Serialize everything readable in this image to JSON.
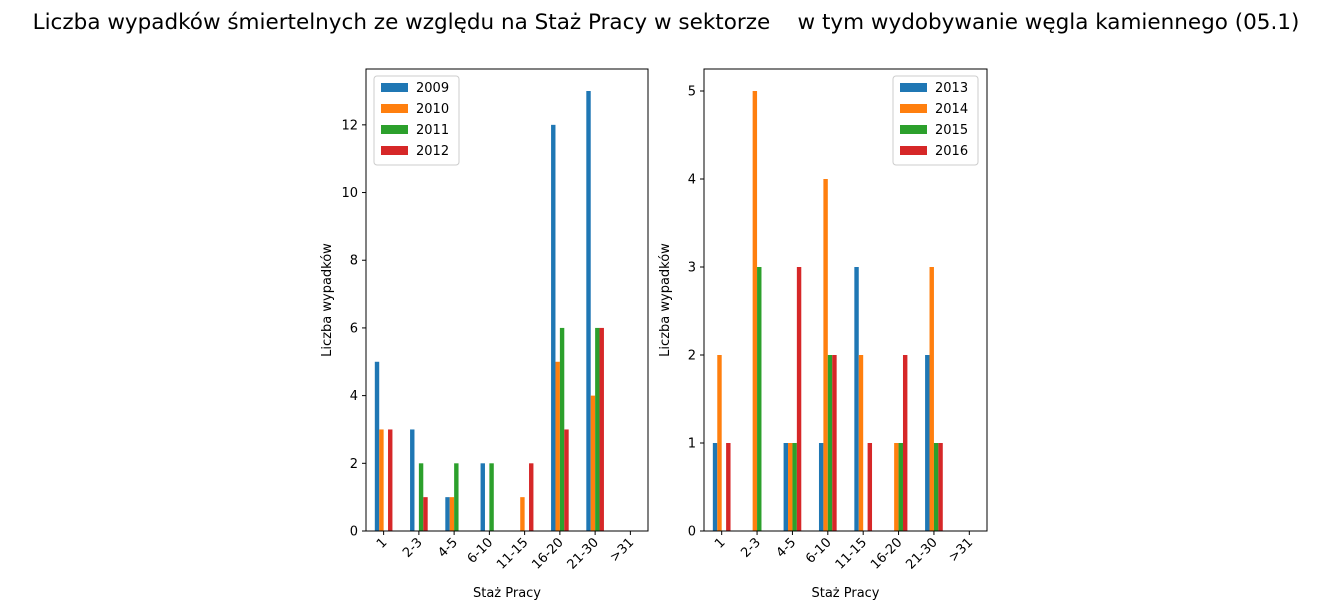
{
  "title": "Liczba wypadków śmiertelnych ze względu na Staż Pracy w sektorze    w tym wydobywanie węgla kamiennego (05.1)",
  "colors": [
    "#1f77b4",
    "#ff7f0e",
    "#2ca02c",
    "#d62728"
  ],
  "chart_data": [
    {
      "type": "bar",
      "categories": [
        "1",
        "2-3",
        "4-5",
        "6-10",
        "11-15",
        "16-20",
        "21-30",
        ">31"
      ],
      "xlabel": "Staż Pracy",
      "ylabel": "Liczba wypadków",
      "ylim": [
        0,
        13.65
      ],
      "yticks": [
        "0",
        "2",
        "4",
        "6",
        "8",
        "10",
        "12"
      ],
      "legend_position": "top-left",
      "series": [
        {
          "name": "2009",
          "values": [
            5,
            3,
            1,
            2,
            0,
            12,
            13,
            0
          ]
        },
        {
          "name": "2010",
          "values": [
            3,
            0,
            1,
            0,
            1,
            5,
            4,
            0
          ]
        },
        {
          "name": "2011",
          "values": [
            0,
            2,
            2,
            2,
            0,
            6,
            6,
            0
          ]
        },
        {
          "name": "2012",
          "values": [
            3,
            1,
            0,
            0,
            2,
            3,
            6,
            0
          ]
        }
      ]
    },
    {
      "type": "bar",
      "categories": [
        "1",
        "2-3",
        "4-5",
        "6-10",
        "11-15",
        "16-20",
        "21-30",
        ">31"
      ],
      "xlabel": "Staż Pracy",
      "ylabel": "Liczba wypadków",
      "ylim": [
        0,
        5.25
      ],
      "yticks": [
        "0",
        "1",
        "2",
        "3",
        "4",
        "5"
      ],
      "legend_position": "top-right",
      "series": [
        {
          "name": "2013",
          "values": [
            1,
            0,
            1,
            1,
            3,
            0,
            2,
            0
          ]
        },
        {
          "name": "2014",
          "values": [
            2,
            5,
            1,
            4,
            2,
            1,
            3,
            0
          ]
        },
        {
          "name": "2015",
          "values": [
            0,
            3,
            1,
            2,
            0,
            1,
            1,
            0
          ]
        },
        {
          "name": "2016",
          "values": [
            1,
            0,
            3,
            2,
            1,
            2,
            1,
            0
          ]
        }
      ]
    }
  ]
}
